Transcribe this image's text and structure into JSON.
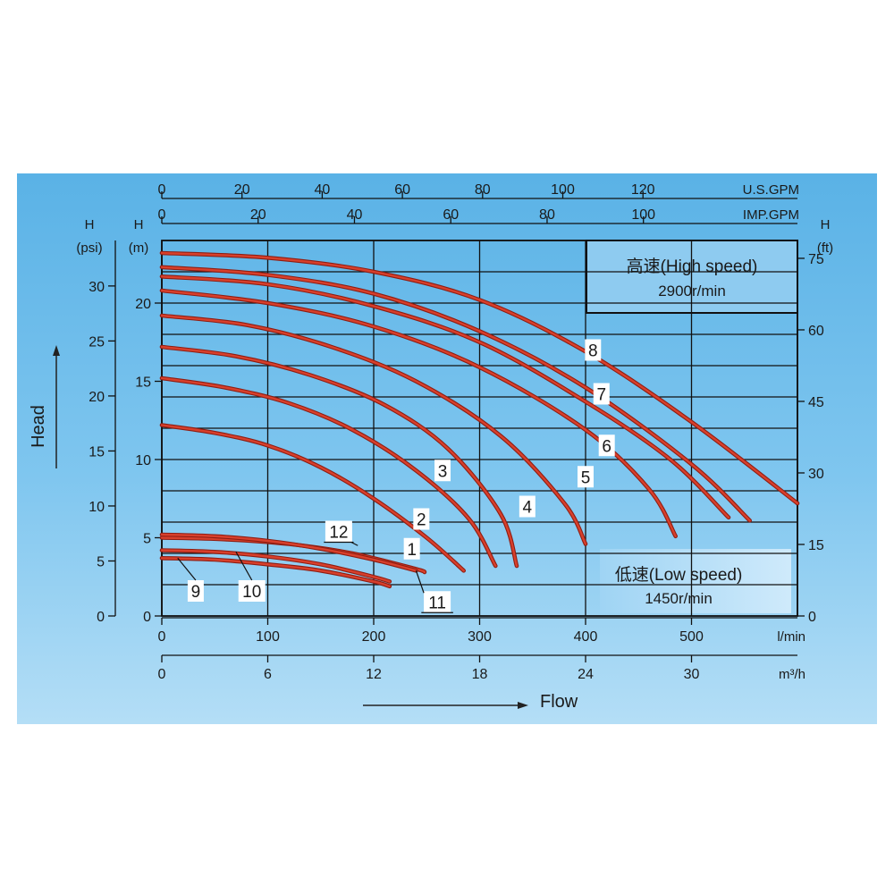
{
  "chart_data": {
    "type": "line",
    "title": "",
    "xlabel": "Flow",
    "ylabel": "Head",
    "xlim": [
      0,
      600
    ],
    "ylim": [
      0,
      24
    ],
    "x_unit": "l/min",
    "y_unit": "(m)",
    "grid": true,
    "axes": {
      "bottom_primary": {
        "unit": "l/min",
        "ticks": [
          "0",
          "100",
          "200",
          "300",
          "400",
          "500"
        ]
      },
      "bottom_secondary": {
        "unit": "m³/h",
        "ticks": [
          "0",
          "6",
          "12",
          "18",
          "24",
          "30"
        ]
      },
      "top_usgpm": {
        "unit": "U.S.GPM",
        "ticks": [
          "0",
          "20",
          "40",
          "60",
          "80",
          "100",
          "120"
        ]
      },
      "top_impgpm": {
        "unit": "IMP.GPM",
        "ticks": [
          "0",
          "20",
          "40",
          "60",
          "80",
          "100"
        ]
      },
      "left_m": {
        "label_h": "H",
        "unit": "(m)",
        "ticks": [
          "0",
          "5",
          "10",
          "15",
          "20"
        ]
      },
      "left_psi": {
        "label_h": "H",
        "unit": "(psi)",
        "ticks": [
          "0",
          "5",
          "10",
          "15",
          "20",
          "25",
          "30"
        ]
      },
      "right_ft": {
        "label_h": "H",
        "unit": "(ft)",
        "ticks": [
          "0",
          "15",
          "30",
          "45",
          "60",
          "75"
        ]
      }
    },
    "annotations": {
      "high_speed": {
        "line1": "高速(High speed)",
        "line2": "2900r/min"
      },
      "low_speed": {
        "line1": "低速(Low speed)",
        "line2": "1450r/min"
      }
    },
    "series": [
      {
        "label": "1",
        "x": [
          0,
          50,
          100,
          150,
          200,
          250,
          285
        ],
        "y": [
          12.2,
          11.7,
          10.9,
          9.5,
          7.5,
          5.0,
          2.9
        ]
      },
      {
        "label": "2",
        "x": [
          0,
          60,
          120,
          180,
          240,
          290,
          315
        ],
        "y": [
          15.2,
          14.6,
          13.6,
          11.9,
          9.3,
          6.2,
          3.2
        ]
      },
      {
        "label": "3",
        "x": [
          0,
          70,
          140,
          210,
          270,
          320,
          335
        ],
        "y": [
          17.2,
          16.6,
          15.4,
          13.5,
          10.7,
          6.5,
          3.2
        ]
      },
      {
        "label": "4",
        "x": [
          0,
          80,
          160,
          240,
          320,
          380,
          400
        ],
        "y": [
          19.2,
          18.6,
          17.2,
          15.0,
          11.5,
          7.2,
          4.6
        ]
      },
      {
        "label": "5",
        "x": [
          0,
          100,
          200,
          300,
          400,
          460,
          485
        ],
        "y": [
          20.8,
          20.0,
          18.5,
          15.9,
          11.9,
          8.1,
          5.1
        ]
      },
      {
        "label": "6",
        "x": [
          0,
          100,
          200,
          300,
          400,
          480,
          535
        ],
        "y": [
          21.7,
          21.2,
          19.8,
          17.5,
          13.7,
          10.0,
          6.3
        ]
      },
      {
        "label": "7",
        "x": [
          0,
          100,
          200,
          300,
          400,
          500,
          555
        ],
        "y": [
          22.3,
          21.8,
          20.6,
          18.2,
          14.6,
          9.7,
          6.1
        ]
      },
      {
        "label": "8",
        "x": [
          0,
          100,
          200,
          300,
          400,
          500,
          600
        ],
        "y": [
          23.2,
          22.9,
          22.0,
          20.2,
          16.9,
          12.4,
          7.2
        ]
      },
      {
        "label": "9",
        "x": [
          0,
          50,
          100,
          150,
          200,
          215
        ],
        "y": [
          3.7,
          3.6,
          3.3,
          2.9,
          2.2,
          1.9
        ]
      },
      {
        "label": "10",
        "x": [
          0,
          50,
          100,
          150,
          200,
          215
        ],
        "y": [
          4.2,
          4.1,
          3.8,
          3.3,
          2.5,
          2.2
        ]
      },
      {
        "label": "11",
        "x": [
          0,
          60,
          120,
          180,
          240,
          248
        ],
        "y": [
          5.0,
          4.9,
          4.6,
          4.0,
          3.0,
          2.8
        ]
      },
      {
        "label": "12",
        "x": [
          0,
          50,
          100,
          150,
          200,
          240
        ],
        "y": [
          5.2,
          5.1,
          4.8,
          4.3,
          3.6,
          2.9
        ]
      }
    ],
    "curve_labels": [
      {
        "text": "1",
        "x": 236,
        "y": 4.3
      },
      {
        "text": "2",
        "x": 245,
        "y": 6.2
      },
      {
        "text": "3",
        "x": 265,
        "y": 9.3
      },
      {
        "text": "4",
        "x": 345,
        "y": 7.0
      },
      {
        "text": "5",
        "x": 400,
        "y": 8.9
      },
      {
        "text": "6",
        "x": 420,
        "y": 10.9
      },
      {
        "text": "7",
        "x": 415,
        "y": 14.2
      },
      {
        "text": "8",
        "x": 407,
        "y": 17.0
      },
      {
        "text": "9",
        "x": 32,
        "y": 1.6
      },
      {
        "text": "10",
        "x": 85,
        "y": 1.6
      },
      {
        "text": "11",
        "x": 260,
        "y": 0.9
      },
      {
        "text": "12",
        "x": 167,
        "y": 5.4
      }
    ]
  }
}
